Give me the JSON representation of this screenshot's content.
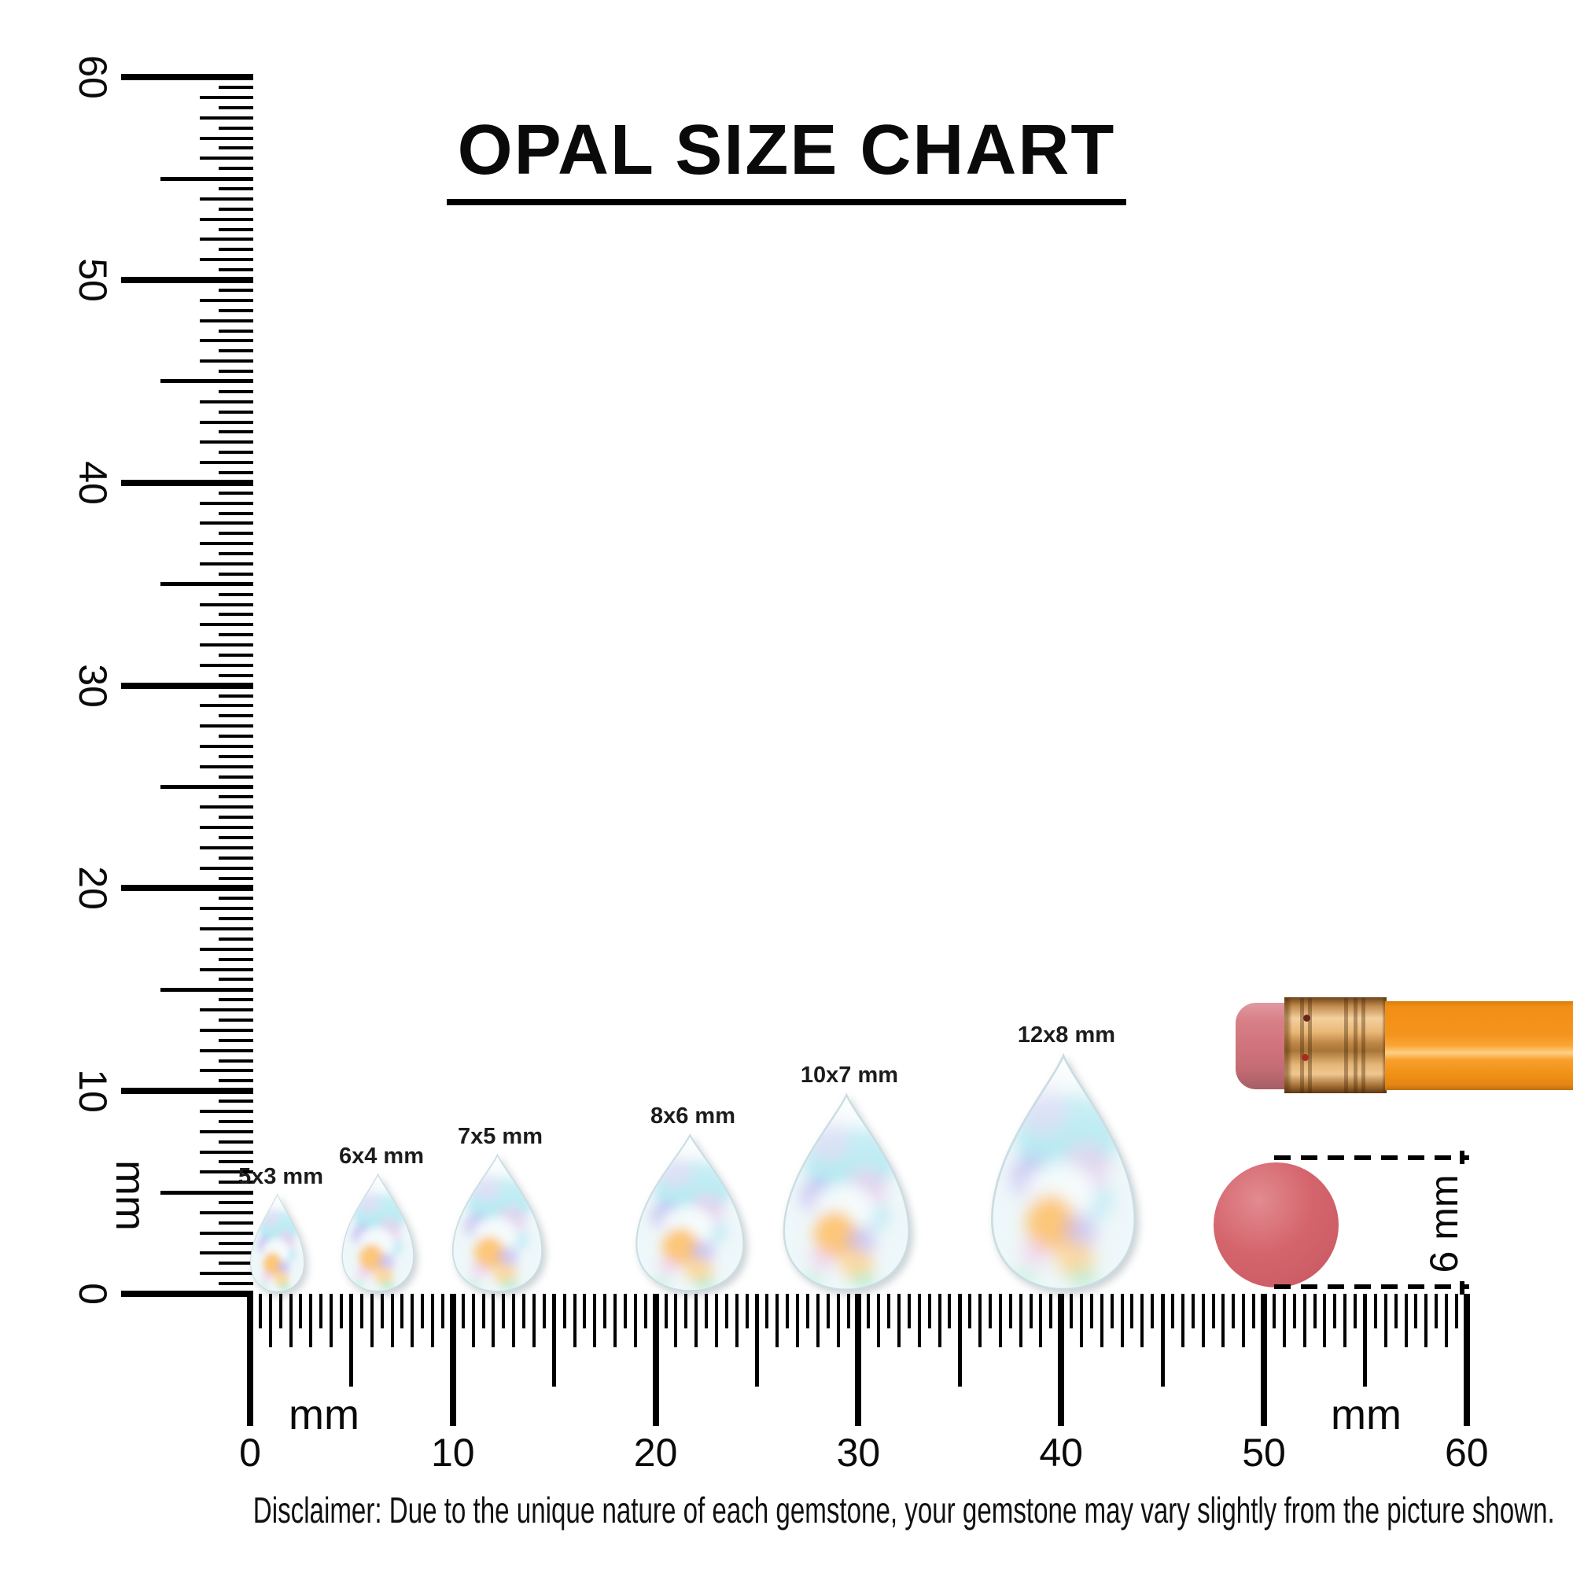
{
  "title": "OPAL SIZE CHART",
  "disclaimer": "Disclaimer: Due to the unique nature of each gemstone, your gemstone may vary slightly from the picture shown.",
  "chart_data": {
    "type": "table",
    "title": "OPAL SIZE CHART",
    "description": "Pear-cut white opal gemstones shown at true scale against millimeter rulers",
    "unit": "mm",
    "columns": [
      "label",
      "width_mm",
      "length_mm"
    ],
    "rows": [
      [
        "5x3 mm",
        3,
        5
      ],
      [
        "6x4 mm",
        4,
        6
      ],
      [
        "7x5 mm",
        5,
        7
      ],
      [
        "8x6 mm",
        6,
        8
      ],
      [
        "10x7 mm",
        7,
        10
      ],
      [
        "12x8 mm",
        8,
        12
      ]
    ],
    "ruler_range_mm": [
      0,
      60
    ],
    "reference_dot_diameter_mm": 6
  },
  "rulers": {
    "horizontal": {
      "tick_labels": [
        "0",
        "10",
        "20",
        "30",
        "40",
        "50",
        "60"
      ],
      "unit_label": "mm"
    },
    "vertical": {
      "tick_labels": [
        "0",
        "10",
        "20",
        "30",
        "40",
        "50",
        "60"
      ],
      "unit_label": "mm"
    }
  },
  "gems": [
    {
      "label": "5x3 mm",
      "w_mm": 3,
      "h_mm": 5
    },
    {
      "label": "6x4 mm",
      "w_mm": 4,
      "h_mm": 6
    },
    {
      "label": "7x5 mm",
      "w_mm": 5,
      "h_mm": 7
    },
    {
      "label": "8x6 mm",
      "w_mm": 6,
      "h_mm": 8
    },
    {
      "label": "10x7 mm",
      "w_mm": 7,
      "h_mm": 10
    },
    {
      "label": "12x8 mm",
      "w_mm": 8,
      "h_mm": 12
    }
  ],
  "reference_objects": {
    "pencil": {
      "name": "pencil eraser end",
      "eraser_color": "#d3757c",
      "ferrule_color": "#e0ab6c",
      "barrel_color": "#f6941c"
    },
    "dot": {
      "label": "6 mm",
      "color": "#d5656d"
    }
  }
}
